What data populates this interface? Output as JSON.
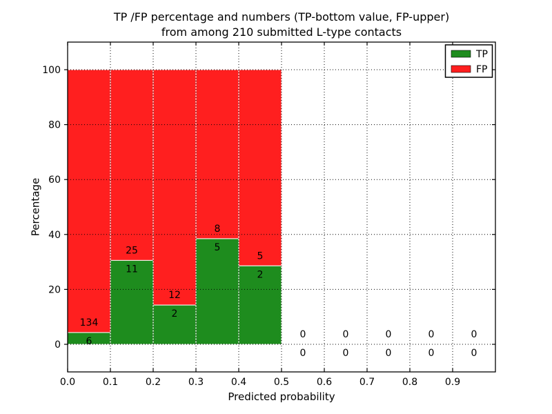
{
  "figure": {
    "title_line1": "TP /FP percentage and numbers (TP-bottom value, FP-upper)",
    "title_line2": "from among 210 submitted L-type contacts",
    "background": "#ffffff"
  },
  "chart_data": {
    "type": "bar",
    "stacked": true,
    "normalized_total_percent": 100,
    "title": "TP /FP percentage and numbers (TP-bottom value, FP-upper) from among 210 submitted L-type contacts",
    "xlabel": "Predicted probability",
    "ylabel": "Percentage",
    "xlim": [
      0.0,
      1.0
    ],
    "ylim": [
      -10,
      110
    ],
    "x_ticks": [
      0.0,
      0.1,
      0.2,
      0.3,
      0.4,
      0.5,
      0.6,
      0.7,
      0.8,
      0.9
    ],
    "x_tick_labels": [
      "0.0",
      "0.1",
      "0.2",
      "0.3",
      "0.4",
      "0.5",
      "0.6",
      "0.7",
      "0.8",
      "0.9"
    ],
    "y_ticks": [
      0,
      20,
      40,
      60,
      80,
      100
    ],
    "y_tick_labels": [
      "0",
      "20",
      "40",
      "60",
      "80",
      "100"
    ],
    "grid": "dotted",
    "grid_color": "#000000",
    "bin_width": 0.1,
    "bin_starts": [
      0.0,
      0.1,
      0.2,
      0.3,
      0.4,
      0.5,
      0.6,
      0.7,
      0.8,
      0.9
    ],
    "series": [
      {
        "name": "TP",
        "color": "#1e8c1e",
        "counts": [
          6,
          11,
          2,
          5,
          2,
          0,
          0,
          0,
          0,
          0
        ]
      },
      {
        "name": "FP",
        "color": "#ff1f1f",
        "counts": [
          134,
          25,
          12,
          8,
          5,
          0,
          0,
          0,
          0,
          0
        ]
      }
    ],
    "tp_percent_heights": [
      4.29,
      30.56,
      14.29,
      38.46,
      28.57,
      0,
      0,
      0,
      0,
      0
    ],
    "total_contacts": 210,
    "bar_edge_color": "#ffffff",
    "legend": {
      "position": "upper right",
      "entries": [
        {
          "label": "TP",
          "color": "#1e8c1e"
        },
        {
          "label": "FP",
          "color": "#ff1f1f"
        }
      ]
    }
  }
}
